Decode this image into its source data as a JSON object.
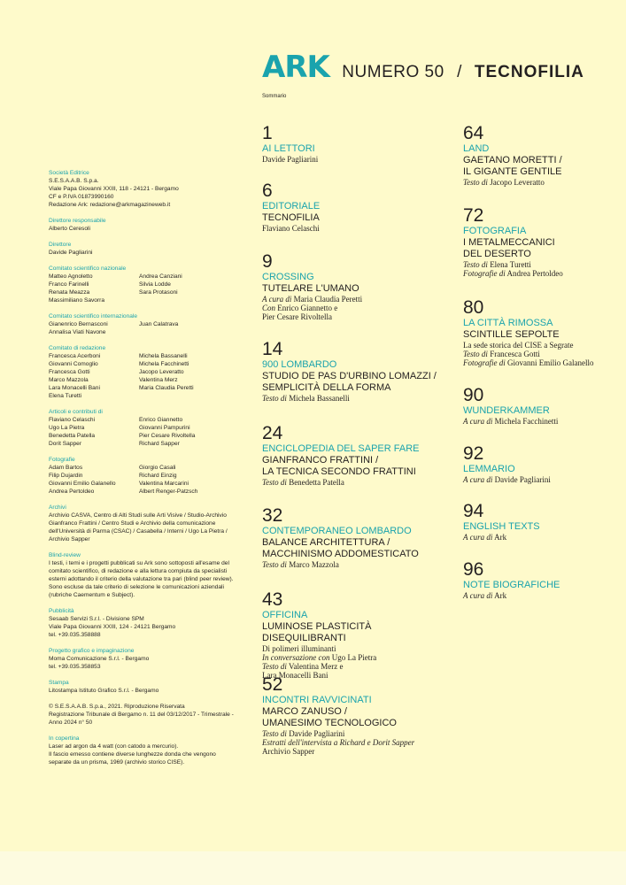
{
  "header": {
    "logo": "ARK",
    "issue": "NUMERO 50",
    "separator": "/",
    "theme": "TECNOFILIA",
    "subtitle": "Sommario"
  },
  "colors": {
    "accent": "#1aa3ad",
    "background": "#fefacb",
    "text": "#231f20"
  },
  "colophon": [
    {
      "label": "Società Editrice",
      "lines": [
        "S.E.S.A.A.B. S.p.a.",
        "Viale Papa Giovanni XXIII, 118 - 24121 - Bergamo",
        "CF e P.IVA 01873990160",
        "Redazione Ark: redazione@arkmagazineweb.it"
      ]
    },
    {
      "label": "Direttore responsabile",
      "lines": [
        "Alberto Ceresoli"
      ]
    },
    {
      "label": "Direttore",
      "lines": [
        "Davide Pagliarini"
      ]
    },
    {
      "label": "Comitato scientifico nazionale",
      "names": [
        "Matteo Agnoletto",
        "Andrea Canziani",
        "Franco Farinelli",
        "Silvia Lodde",
        "Renata Meazza",
        "Sara Protasoni",
        "Massimiliano Savorra"
      ]
    },
    {
      "label": "Comitato scientifico internazionale",
      "names": [
        "Gianenrico Bernasconi",
        "Juan Calatrava",
        "Annalisa Viati Navone"
      ]
    },
    {
      "label": "Comitato di redazione",
      "names": [
        "Francesca Acerboni",
        "Michela Bassanelli",
        "Giovanni Comoglio",
        "Michela Facchinetti",
        "Francesca Gotti",
        "Jacopo Leveratto",
        "Marco Mazzola",
        "Valentina Merz",
        "Lara Monacelli Bani",
        "Maria Claudia Peretti",
        "Elena Turetti"
      ]
    },
    {
      "label": "Articoli e contributi di",
      "names": [
        "Flaviano Celaschi",
        "Enrico Giannetto",
        "Ugo La Pietra",
        "Giovanni Pampurini",
        "Benedetta Patella",
        "Pier Cesare Rivoltella",
        "Dorit Sapper",
        "Richard Sapper"
      ]
    },
    {
      "label": "Fotografie",
      "names": [
        "Adam Bartos",
        "Giorgio Casali",
        "Filip Dujardin",
        "Richard Einzig",
        "Giovanni Emilio Galanello",
        "Valentina Marcarini",
        "Andrea Pertoldeo",
        "Albert Renger-Patzsch"
      ]
    },
    {
      "label": "Archivi",
      "lines": [
        "Archivio CASVA, Centro di Alti Studi sulle Arti Visive / Studio-Archivio Gianfranco Frattini / Centro Studi e Archivio della comunicazione dell'Università di Parma (CSAC) / Casabella / Interni / Ugo La Pietra / Archivio Sapper"
      ]
    },
    {
      "label": "Blind-review",
      "lines": [
        "I testi, i temi e i progetti pubblicati su Ark sono sottoposti all'esame del comitato scientifico, di redazione e alla lettura compiuta da specialisti esterni adottando il criterio della valutazione tra pari (blind peer review). Sono escluse da tale criterio di selezione le comunicazioni aziendali (rubriche Caementum e Subject)."
      ]
    },
    {
      "label": "Pubblicità",
      "lines": [
        "Sesaab Servizi S.r.l. - Divisione SPM",
        "Viale Papa Giovanni XXIII, 124 - 24121 Bergamo",
        "tel. +39.035.358888"
      ]
    },
    {
      "label": "Progetto grafico e impaginazione",
      "lines": [
        "Moma Comunicazione S.r.l. - Bergamo",
        "tel. +39.035.358853"
      ]
    },
    {
      "label": "Stampa",
      "lines": [
        "Litostampa Istituto Grafico S.r.l. - Bergamo"
      ]
    },
    {
      "label": "",
      "lines": [
        "© S.E.S.A.A.B. S.p.a., 2021. Riproduzione Riservata",
        "Registrazione Tribunale di Bergamo n. 11 del 03/12/2017 - Trimestrale - Anno 2024 n° 50"
      ]
    },
    {
      "label": "In copertina",
      "lines": [
        "Laser ad argon da 4 watt (con catodo a mercurio).",
        "Il fascio emesso contiene diverse lunghezze donda che vengono separate da un prisma, 1969 (archivio storico CISE)."
      ]
    }
  ],
  "toc": [
    {
      "page": "1",
      "section": "Ai lettori",
      "title": [],
      "credits": [
        {
          "p": "",
          "n": "Davide Pagliarini"
        }
      ]
    },
    {
      "page": "6",
      "section": "Editoriale",
      "title": [
        "TECNOFILIA"
      ],
      "credits": [
        {
          "p": "",
          "n": "Flaviano Celaschi"
        }
      ]
    },
    {
      "page": "9",
      "section": "Crossing",
      "title": [
        "TUTELARE L'UMANO"
      ],
      "credits": [
        {
          "p": "A cura di",
          "n": "Maria Claudia Peretti"
        },
        {
          "p": "Con",
          "n": "Enrico Giannetto e"
        },
        {
          "p": "",
          "n": "Pier Cesare Rivoltella"
        }
      ]
    },
    {
      "page": "14",
      "section": "900 Lombardo",
      "title": [
        "STUDIO DE PAS D'URBINO LOMAZZI /",
        "SEMPLICITÀ DELLA FORMA"
      ],
      "credits": [
        {
          "p": "Testo di",
          "n": "Michela Bassanelli"
        }
      ]
    },
    {
      "page": "24",
      "section": "Enciclopedia del saper fare",
      "title": [
        "GIANFRANCO FRATTINI /",
        "LA TECNICA SECONDO FRATTINI"
      ],
      "credits": [
        {
          "p": "Testo di",
          "n": "Benedetta Patella"
        }
      ]
    },
    {
      "page": "32",
      "section": "Contemporaneo lombardo",
      "title": [
        "BALANCE ARCHITETTURA /",
        "MACCHINISMO ADDOMESTICATO"
      ],
      "credits": [
        {
          "p": "Testo di",
          "n": "Marco Mazzola"
        }
      ]
    },
    {
      "page": "43",
      "section": "Officina",
      "title": [
        "LUMINOSE PLASTICITÀ",
        "DISEQUILIBRANTI"
      ],
      "credits": [
        {
          "p": "",
          "n": "Di polimeri illuminanti"
        },
        {
          "p": "In conversazione con",
          "n": "Ugo La Pietra"
        },
        {
          "p": "Testo di",
          "n": "Valentina Merz e"
        },
        {
          "p": "",
          "n": "Lara Monacelli Bani"
        }
      ]
    },
    {
      "page": "52",
      "section": "Incontri ravvicinati",
      "title": [
        "MARCO ZANUSO /",
        "UMANESIMO TECNOLOGICO"
      ],
      "credits": [
        {
          "p": "Testo di",
          "n": "Davide Pagliarini"
        },
        {
          "p": "Estratti dell'intervista a Richard e Dorit Sapper",
          "n": ""
        },
        {
          "p": "",
          "n": "Archivio Sapper"
        }
      ]
    },
    {
      "page": "64",
      "section": "Land",
      "title": [
        "GAETANO MORETTI /",
        "IL GIGANTE GENTILE"
      ],
      "credits": [
        {
          "p": "Testo di",
          "n": "Jacopo Leveratto"
        }
      ]
    },
    {
      "page": "72",
      "section": "Fotografia",
      "title": [
        "I METALMECCANICI",
        "DEL DESERTO"
      ],
      "credits": [
        {
          "p": "Testo di",
          "n": "Elena Turetti"
        },
        {
          "p": "Fotografie di",
          "n": "Andrea Pertoldeo"
        }
      ]
    },
    {
      "page": "80",
      "section": "La città rimossa",
      "title": [
        "SCINTILLE SEPOLTE"
      ],
      "credits": [
        {
          "p": "",
          "n": "La sede storica del CISE a Segrate"
        },
        {
          "p": "Testo di",
          "n": "Francesca Gotti"
        },
        {
          "p": "Fotografie di",
          "n": "Giovanni Emilio Galanello"
        }
      ]
    },
    {
      "page": "90",
      "section": "Wunderkammer",
      "title": [],
      "credits": [
        {
          "p": "A cura di",
          "n": "Michela Facchinetti"
        }
      ]
    },
    {
      "page": "92",
      "section": "Lemmario",
      "title": [],
      "credits": [
        {
          "p": "A cura di",
          "n": "Davide Pagliarini"
        }
      ]
    },
    {
      "page": "94",
      "section": "English texts",
      "title": [],
      "credits": [
        {
          "p": "A cura di",
          "n": "Ark"
        }
      ]
    },
    {
      "page": "96",
      "section": "Note biografiche",
      "title": [],
      "credits": [
        {
          "p": "A cura di",
          "n": "Ark"
        }
      ]
    }
  ]
}
